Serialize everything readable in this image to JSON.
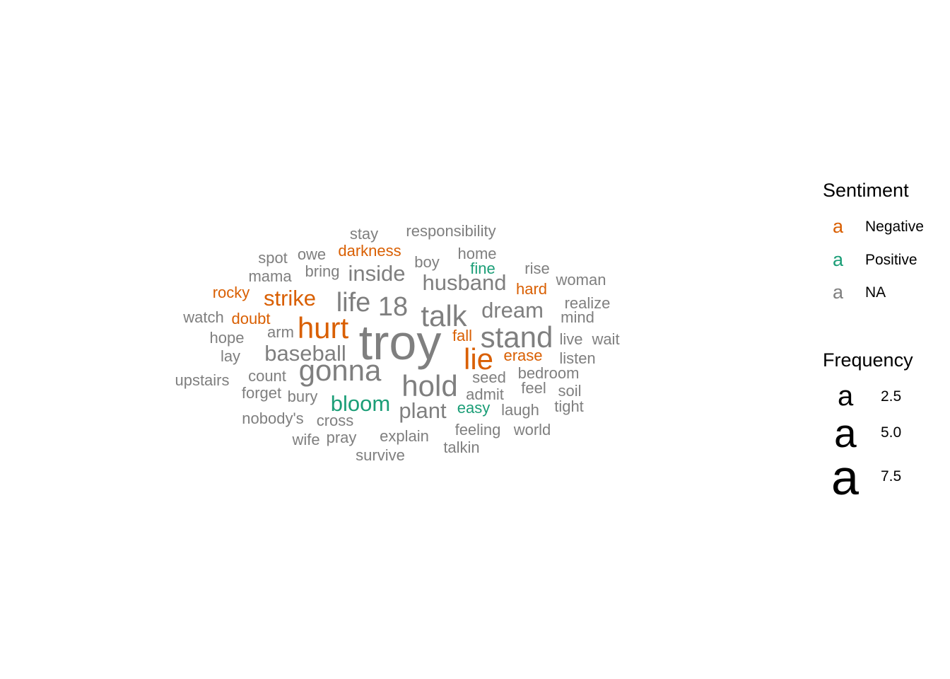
{
  "chart_data": {
    "type": "wordcloud",
    "title": "",
    "colors": {
      "Negative": "#D95F02",
      "Positive": "#1B9E77",
      "NA": "#7F7F7F"
    },
    "words": [
      {
        "word": "troy",
        "frequency": 9,
        "sentiment": "NA"
      },
      {
        "word": "talk",
        "frequency": 5,
        "sentiment": "NA"
      },
      {
        "word": "stand",
        "frequency": 5,
        "sentiment": "NA"
      },
      {
        "word": "hurt",
        "frequency": 5,
        "sentiment": "Negative"
      },
      {
        "word": "gonna",
        "frequency": 5,
        "sentiment": "NA"
      },
      {
        "word": "lie",
        "frequency": 5,
        "sentiment": "Negative"
      },
      {
        "word": "hold",
        "frequency": 5,
        "sentiment": "NA"
      },
      {
        "word": "life",
        "frequency": 4,
        "sentiment": "NA"
      },
      {
        "word": "18",
        "frequency": 4,
        "sentiment": "NA"
      },
      {
        "word": "dream",
        "frequency": 3,
        "sentiment": "NA"
      },
      {
        "word": "husband",
        "frequency": 3,
        "sentiment": "NA"
      },
      {
        "word": "inside",
        "frequency": 3,
        "sentiment": "NA"
      },
      {
        "word": "strike",
        "frequency": 3,
        "sentiment": "Negative"
      },
      {
        "word": "baseball",
        "frequency": 3,
        "sentiment": "NA"
      },
      {
        "word": "bloom",
        "frequency": 3,
        "sentiment": "Positive"
      },
      {
        "word": "plant",
        "frequency": 3,
        "sentiment": "NA"
      },
      {
        "word": "responsibility",
        "frequency": 2,
        "sentiment": "NA"
      },
      {
        "word": "stay",
        "frequency": 2,
        "sentiment": "NA"
      },
      {
        "word": "darkness",
        "frequency": 2,
        "sentiment": "Negative"
      },
      {
        "word": "spot",
        "frequency": 2,
        "sentiment": "NA"
      },
      {
        "word": "owe",
        "frequency": 2,
        "sentiment": "NA"
      },
      {
        "word": "home",
        "frequency": 2,
        "sentiment": "NA"
      },
      {
        "word": "boy",
        "frequency": 2,
        "sentiment": "NA"
      },
      {
        "word": "mama",
        "frequency": 2,
        "sentiment": "NA"
      },
      {
        "word": "bring",
        "frequency": 2,
        "sentiment": "NA"
      },
      {
        "word": "fine",
        "frequency": 2,
        "sentiment": "Positive"
      },
      {
        "word": "rise",
        "frequency": 2,
        "sentiment": "NA"
      },
      {
        "word": "woman",
        "frequency": 2,
        "sentiment": "NA"
      },
      {
        "word": "rocky",
        "frequency": 2,
        "sentiment": "Negative"
      },
      {
        "word": "hard",
        "frequency": 2,
        "sentiment": "Negative"
      },
      {
        "word": "realize",
        "frequency": 2,
        "sentiment": "NA"
      },
      {
        "word": "watch",
        "frequency": 2,
        "sentiment": "NA"
      },
      {
        "word": "doubt",
        "frequency": 2,
        "sentiment": "Negative"
      },
      {
        "word": "mind",
        "frequency": 2,
        "sentiment": "NA"
      },
      {
        "word": "arm",
        "frequency": 2,
        "sentiment": "NA"
      },
      {
        "word": "hope",
        "frequency": 2,
        "sentiment": "NA"
      },
      {
        "word": "fall",
        "frequency": 2,
        "sentiment": "Negative"
      },
      {
        "word": "live",
        "frequency": 2,
        "sentiment": "NA"
      },
      {
        "word": "wait",
        "frequency": 2,
        "sentiment": "NA"
      },
      {
        "word": "lay",
        "frequency": 2,
        "sentiment": "NA"
      },
      {
        "word": "erase",
        "frequency": 2,
        "sentiment": "Negative"
      },
      {
        "word": "listen",
        "frequency": 2,
        "sentiment": "NA"
      },
      {
        "word": "upstairs",
        "frequency": 2,
        "sentiment": "NA"
      },
      {
        "word": "count",
        "frequency": 2,
        "sentiment": "NA"
      },
      {
        "word": "seed",
        "frequency": 2,
        "sentiment": "NA"
      },
      {
        "word": "bedroom",
        "frequency": 2,
        "sentiment": "NA"
      },
      {
        "word": "forget",
        "frequency": 2,
        "sentiment": "NA"
      },
      {
        "word": "bury",
        "frequency": 2,
        "sentiment": "NA"
      },
      {
        "word": "admit",
        "frequency": 2,
        "sentiment": "NA"
      },
      {
        "word": "feel",
        "frequency": 2,
        "sentiment": "NA"
      },
      {
        "word": "soil",
        "frequency": 2,
        "sentiment": "NA"
      },
      {
        "word": "easy",
        "frequency": 2,
        "sentiment": "Positive"
      },
      {
        "word": "laugh",
        "frequency": 2,
        "sentiment": "NA"
      },
      {
        "word": "tight",
        "frequency": 2,
        "sentiment": "NA"
      },
      {
        "word": "nobody's",
        "frequency": 2,
        "sentiment": "NA"
      },
      {
        "word": "cross",
        "frequency": 2,
        "sentiment": "NA"
      },
      {
        "word": "feeling",
        "frequency": 2,
        "sentiment": "NA"
      },
      {
        "word": "world",
        "frequency": 2,
        "sentiment": "NA"
      },
      {
        "word": "wife",
        "frequency": 2,
        "sentiment": "NA"
      },
      {
        "word": "pray",
        "frequency": 2,
        "sentiment": "NA"
      },
      {
        "word": "explain",
        "frequency": 2,
        "sentiment": "NA"
      },
      {
        "word": "talkin",
        "frequency": 2,
        "sentiment": "NA"
      },
      {
        "word": "survive",
        "frequency": 2,
        "sentiment": "NA"
      }
    ],
    "legend": {
      "sentiment_title": "Sentiment",
      "sentiment_items": [
        {
          "key": "a",
          "label": "Negative",
          "color": "#D95F02"
        },
        {
          "key": "a",
          "label": "Positive",
          "color": "#1B9E77"
        },
        {
          "key": "a",
          "label": "NA",
          "color": "#7F7F7F"
        }
      ],
      "frequency_title": "Frequency",
      "frequency_items": [
        {
          "key": "a",
          "label": "2.5",
          "value": 2.5
        },
        {
          "key": "a",
          "label": "5.0",
          "value": 5.0
        },
        {
          "key": "a",
          "label": "7.5",
          "value": 7.5
        }
      ]
    }
  }
}
